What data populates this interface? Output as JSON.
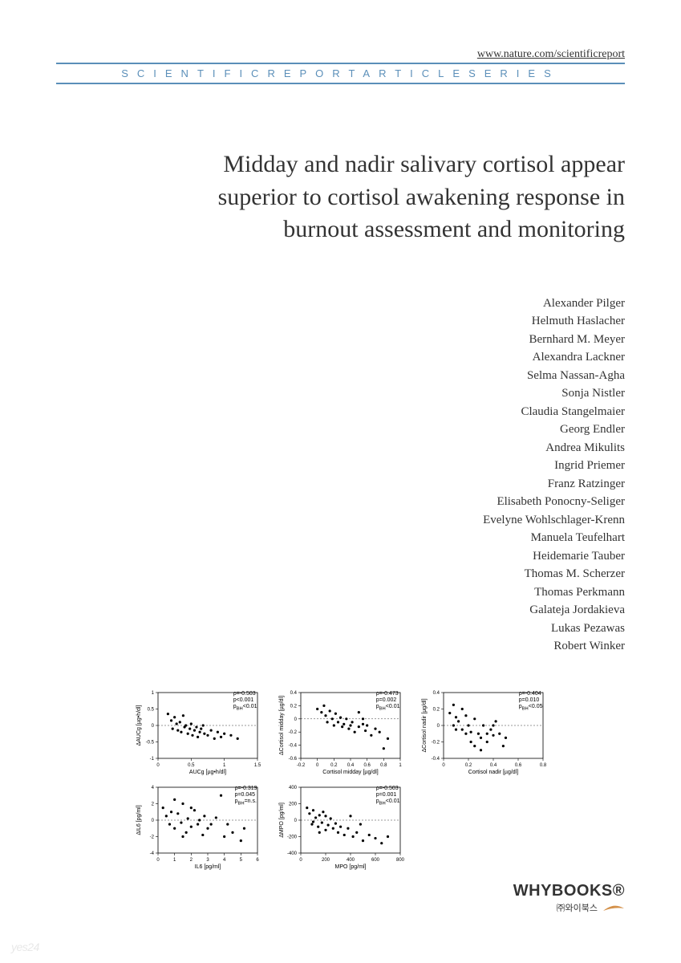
{
  "header": {
    "url": "www.nature.com/scientificreport",
    "series_text": "SCIENTIFICREPORTARTICLESERIES",
    "series_color": "#5b8fb9"
  },
  "title": "Midday and nadir salivary cortisol appear superior to cortisol awakening response in burnout assessment and monitoring",
  "authors": [
    "Alexander Pilger",
    "Helmuth Haslacher",
    "Bernhard M. Meyer",
    "Alexandra Lackner",
    "Selma Nassan-Agha",
    "Sonja Nistler",
    "Claudia Stangelmaier",
    "Georg Endler",
    "Andrea Mikulits",
    "Ingrid Priemer",
    "Franz Ratzinger",
    "Elisabeth Ponocny-Seliger",
    "Evelyne Wohlschlager-Krenn",
    "Manuela Teufelhart",
    "Heidemarie Tauber",
    "Thomas M. Scherzer",
    "Thomas Perkmann",
    "Galateja Jordakieva",
    "Lukas Pezawas",
    "Robert Winker"
  ],
  "charts": [
    {
      "type": "scatter",
      "xlabel": "AUCg [µg•h/dl]",
      "ylabel": "ΔAUCg [µg•h/dl]",
      "xlim": [
        0.0,
        1.5
      ],
      "xticks": [
        0.0,
        0.5,
        1.0,
        1.5
      ],
      "ylim": [
        -1.0,
        1.0
      ],
      "yticks": [
        -1.0,
        -0.5,
        0.0,
        0.5,
        1.0
      ],
      "stats": [
        "ρ=-0.503",
        "p<0.001",
        "p_BH<0.01"
      ],
      "point_color": "#000000",
      "points": [
        [
          0.15,
          0.35
        ],
        [
          0.2,
          0.15
        ],
        [
          0.22,
          -0.1
        ],
        [
          0.25,
          0.25
        ],
        [
          0.28,
          0.05
        ],
        [
          0.3,
          -0.15
        ],
        [
          0.33,
          0.1
        ],
        [
          0.35,
          -0.2
        ],
        [
          0.38,
          0.3
        ],
        [
          0.4,
          -0.05
        ],
        [
          0.42,
          0.0
        ],
        [
          0.45,
          -0.25
        ],
        [
          0.48,
          -0.1
        ],
        [
          0.5,
          0.05
        ],
        [
          0.52,
          -0.3
        ],
        [
          0.55,
          -0.15
        ],
        [
          0.58,
          -0.05
        ],
        [
          0.6,
          -0.35
        ],
        [
          0.63,
          -0.2
        ],
        [
          0.65,
          -0.1
        ],
        [
          0.68,
          0.0
        ],
        [
          0.7,
          -0.25
        ],
        [
          0.75,
          -0.3
        ],
        [
          0.8,
          -0.15
        ],
        [
          0.85,
          -0.4
        ],
        [
          0.9,
          -0.2
        ],
        [
          0.95,
          -0.35
        ],
        [
          1.0,
          -0.25
        ],
        [
          1.1,
          -0.3
        ],
        [
          1.2,
          -0.4
        ]
      ]
    },
    {
      "type": "scatter",
      "xlabel": "Cortisol midday [µg/dl]",
      "ylabel": "ΔCortisol midday [µg/dl]",
      "xlim": [
        -0.2,
        1.0
      ],
      "xticks": [
        -0.2,
        0.0,
        0.2,
        0.4,
        0.6,
        0.8,
        1.0
      ],
      "ylim": [
        -0.6,
        0.4
      ],
      "yticks": [
        -0.6,
        -0.4,
        -0.2,
        0.0,
        0.2,
        0.4
      ],
      "stats": [
        "ρ=-0.473",
        "p=0.002",
        "p_BH<0.01"
      ],
      "point_color": "#000000",
      "points": [
        [
          0.0,
          0.15
        ],
        [
          0.05,
          0.1
        ],
        [
          0.08,
          0.2
        ],
        [
          0.1,
          0.05
        ],
        [
          0.12,
          -0.05
        ],
        [
          0.15,
          0.12
        ],
        [
          0.18,
          0.0
        ],
        [
          0.2,
          -0.1
        ],
        [
          0.22,
          0.08
        ],
        [
          0.25,
          -0.05
        ],
        [
          0.28,
          0.02
        ],
        [
          0.3,
          -0.12
        ],
        [
          0.32,
          -0.08
        ],
        [
          0.35,
          0.0
        ],
        [
          0.38,
          -0.15
        ],
        [
          0.4,
          -0.1
        ],
        [
          0.42,
          -0.05
        ],
        [
          0.45,
          -0.2
        ],
        [
          0.5,
          -0.12
        ],
        [
          0.55,
          -0.08
        ],
        [
          0.58,
          -0.18
        ],
        [
          0.6,
          -0.1
        ],
        [
          0.65,
          -0.25
        ],
        [
          0.7,
          -0.15
        ],
        [
          0.75,
          -0.2
        ],
        [
          0.8,
          -0.45
        ],
        [
          0.85,
          -0.3
        ],
        [
          0.5,
          0.1
        ],
        [
          0.55,
          0.0
        ]
      ]
    },
    {
      "type": "scatter",
      "xlabel": "Cortisol nadir [µg/dl]",
      "ylabel": "ΔCortisol nadir [µg/dl]",
      "xlim": [
        0.0,
        0.8
      ],
      "xticks": [
        0.0,
        0.2,
        0.4,
        0.6,
        0.8
      ],
      "ylim": [
        -0.4,
        0.4
      ],
      "yticks": [
        -0.4,
        -0.2,
        0.0,
        0.2,
        0.4
      ],
      "stats": [
        "ρ=-0.404",
        "p=0.010",
        "p_BH<0.05"
      ],
      "point_color": "#000000",
      "points": [
        [
          0.05,
          0.15
        ],
        [
          0.08,
          0.25
        ],
        [
          0.1,
          0.1
        ],
        [
          0.12,
          0.05
        ],
        [
          0.15,
          -0.05
        ],
        [
          0.18,
          0.12
        ],
        [
          0.2,
          0.0
        ],
        [
          0.22,
          -0.08
        ],
        [
          0.25,
          0.08
        ],
        [
          0.28,
          -0.1
        ],
        [
          0.3,
          -0.15
        ],
        [
          0.32,
          0.0
        ],
        [
          0.35,
          -0.2
        ],
        [
          0.38,
          -0.05
        ],
        [
          0.4,
          -0.12
        ],
        [
          0.42,
          0.05
        ],
        [
          0.45,
          -0.1
        ],
        [
          0.48,
          -0.25
        ],
        [
          0.5,
          -0.15
        ],
        [
          0.22,
          -0.2
        ],
        [
          0.25,
          -0.25
        ],
        [
          0.3,
          -0.3
        ],
        [
          0.15,
          0.2
        ],
        [
          0.18,
          -0.1
        ],
        [
          0.1,
          -0.05
        ],
        [
          0.08,
          0.0
        ],
        [
          0.35,
          -0.1
        ],
        [
          0.4,
          0.0
        ]
      ]
    },
    {
      "type": "scatter",
      "xlabel": "IL6 [pg/ml]",
      "ylabel": "ΔIL6 [pg/ml]",
      "xlim": [
        0,
        6
      ],
      "xticks": [
        0,
        1,
        2,
        3,
        4,
        5,
        6
      ],
      "ylim": [
        -4,
        4
      ],
      "yticks": [
        -4,
        -2,
        0,
        2,
        4
      ],
      "stats": [
        "ρ=-0.319",
        "p=0.045",
        "p_BH=n.s."
      ],
      "point_color": "#000000",
      "points": [
        [
          0.3,
          1.5
        ],
        [
          0.5,
          0.5
        ],
        [
          0.7,
          -0.5
        ],
        [
          0.8,
          1.0
        ],
        [
          1.0,
          -1.0
        ],
        [
          1.2,
          0.8
        ],
        [
          1.4,
          -0.3
        ],
        [
          1.5,
          2.0
        ],
        [
          1.7,
          -1.5
        ],
        [
          1.8,
          0.2
        ],
        [
          2.0,
          -0.8
        ],
        [
          2.2,
          1.2
        ],
        [
          2.4,
          -0.5
        ],
        [
          2.5,
          0.0
        ],
        [
          2.7,
          -1.8
        ],
        [
          2.8,
          0.5
        ],
        [
          3.0,
          -1.0
        ],
        [
          3.2,
          -0.5
        ],
        [
          3.5,
          0.3
        ],
        [
          3.8,
          3.0
        ],
        [
          4.0,
          -2.0
        ],
        [
          4.2,
          -0.5
        ],
        [
          4.5,
          -1.5
        ],
        [
          5.0,
          -2.5
        ],
        [
          5.2,
          -1.0
        ],
        [
          1.0,
          2.5
        ],
        [
          1.5,
          -2.0
        ],
        [
          2.0,
          1.5
        ]
      ]
    },
    {
      "type": "scatter",
      "xlabel": "MPO [pg/ml]",
      "ylabel": "ΔMPO [pg/ml]",
      "xlim": [
        0,
        800
      ],
      "xticks": [
        0,
        200,
        400,
        600,
        800
      ],
      "ylim": [
        -400,
        400
      ],
      "yticks": [
        -400,
        -200,
        0,
        200,
        400
      ],
      "stats": [
        "ρ=-0.503",
        "p=0.001",
        "p_BH<0.01"
      ],
      "point_color": "#000000",
      "points": [
        [
          50,
          150
        ],
        [
          70,
          80
        ],
        [
          90,
          -50
        ],
        [
          100,
          120
        ],
        [
          120,
          30
        ],
        [
          140,
          -80
        ],
        [
          150,
          60
        ],
        [
          170,
          -30
        ],
        [
          180,
          100
        ],
        [
          200,
          -120
        ],
        [
          220,
          -60
        ],
        [
          240,
          20
        ],
        [
          260,
          -100
        ],
        [
          280,
          -40
        ],
        [
          300,
          -150
        ],
        [
          320,
          -80
        ],
        [
          350,
          -180
        ],
        [
          380,
          -100
        ],
        [
          400,
          50
        ],
        [
          420,
          -200
        ],
        [
          450,
          -150
        ],
        [
          480,
          -50
        ],
        [
          500,
          -250
        ],
        [
          550,
          -180
        ],
        [
          600,
          -220
        ],
        [
          650,
          -280
        ],
        [
          700,
          -200
        ],
        [
          150,
          -150
        ],
        [
          200,
          50
        ],
        [
          100,
          -20
        ]
      ]
    }
  ],
  "publisher": {
    "name": "WHYBOOKS®",
    "subtitle": "㈜와이북스",
    "swoosh_color": "#d4914a"
  },
  "watermark": "yes24"
}
